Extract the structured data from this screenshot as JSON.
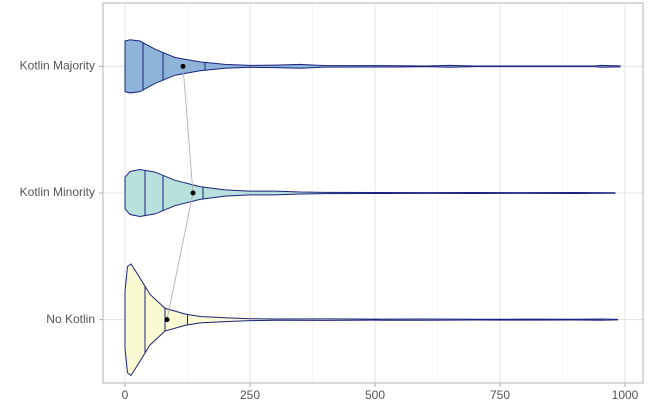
{
  "chart_data": {
    "type": "violin",
    "categories": [
      "No Kotlin",
      "Kotlin Minority",
      "Kotlin Majority"
    ],
    "xlim": [
      -44,
      1036
    ],
    "xticks": [
      0,
      250,
      500,
      750,
      1000
    ],
    "minor_xticks": [
      125,
      375,
      625,
      875
    ],
    "grid": true,
    "outline_color": "#1a237e",
    "mean_line_color": "#aaaaaa",
    "series": [
      {
        "category": "No Kotlin",
        "color": "#fafad2",
        "x": [
          0,
          5,
          12,
          25,
          50,
          80,
          120,
          150,
          200,
          250,
          300,
          400,
          500,
          600,
          700,
          800,
          900,
          950,
          985
        ],
        "width": [
          0.45,
          0.84,
          0.88,
          0.72,
          0.4,
          0.18,
          0.09,
          0.05,
          0.03,
          0.015,
          0.01,
          0.012,
          0.008,
          0.01,
          0.006,
          0.008,
          0.006,
          0.01,
          0.004
        ],
        "quantiles": [
          40,
          80,
          125
        ],
        "mean": 84
      },
      {
        "category": "Kotlin Minority",
        "color": "#b8e0dc",
        "x": [
          0,
          10,
          30,
          60,
          100,
          150,
          200,
          250,
          300,
          350,
          400,
          500,
          600,
          700,
          800,
          900,
          980
        ],
        "width": [
          0.25,
          0.34,
          0.37,
          0.33,
          0.2,
          0.1,
          0.05,
          0.03,
          0.03,
          0.015,
          0.01,
          0.008,
          0.006,
          0.008,
          0.006,
          0.008,
          0.004
        ],
        "quantiles": [
          40,
          76,
          156
        ],
        "mean": 136
      },
      {
        "category": "Kotlin Majority",
        "color": "#8fb4d9",
        "x": [
          0,
          10,
          30,
          60,
          100,
          150,
          200,
          250,
          300,
          350,
          400,
          550,
          600,
          650,
          700,
          940,
          950,
          990
        ],
        "width": [
          0.4,
          0.42,
          0.4,
          0.27,
          0.14,
          0.07,
          0.03,
          0.015,
          0.02,
          0.03,
          0.012,
          0.01,
          0.005,
          0.015,
          0.005,
          0.005,
          0.015,
          0.008
        ],
        "quantiles": [
          36,
          76,
          160
        ],
        "mean": 116
      }
    ]
  }
}
